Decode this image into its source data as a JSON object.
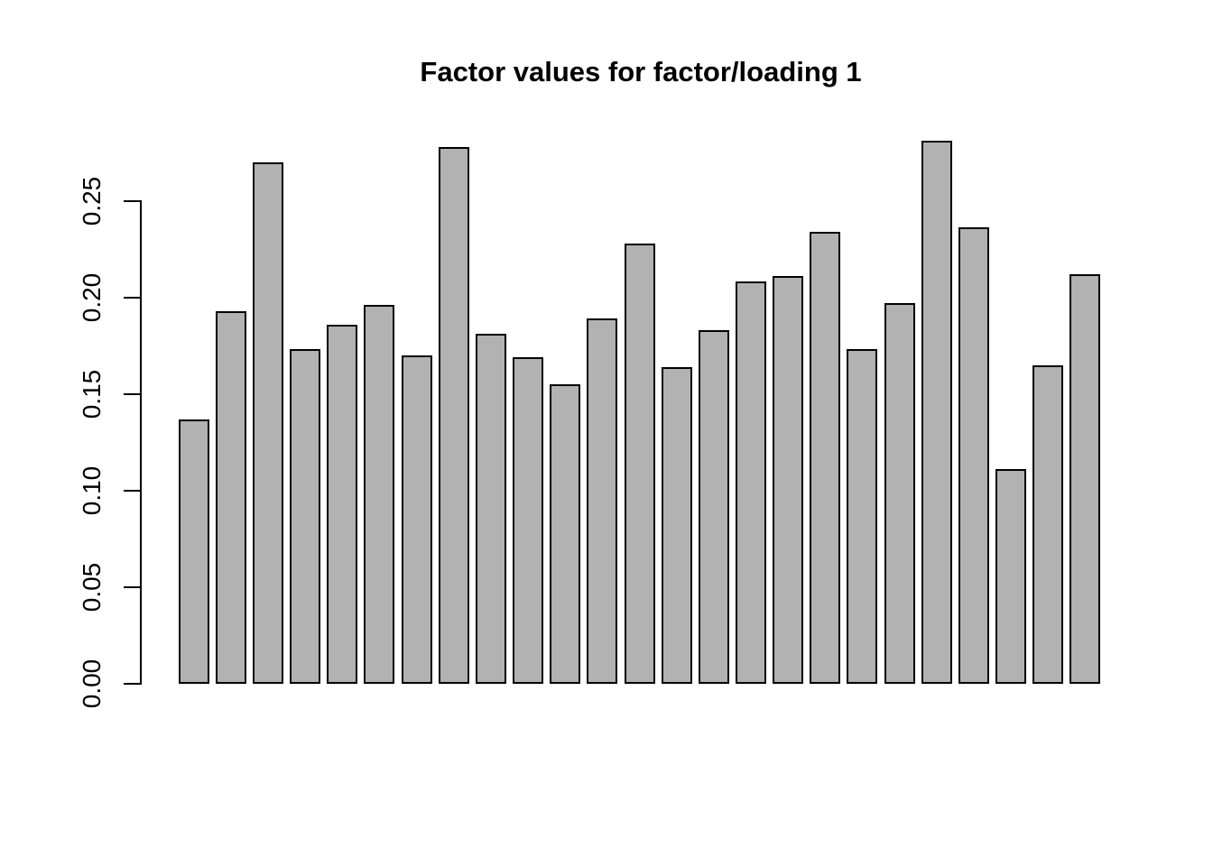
{
  "chart_data": {
    "type": "bar",
    "title": "Factor values for factor/loading 1",
    "xlabel": "",
    "ylabel": "",
    "x_tick_labels": "none",
    "ytick_labels": [
      "0.00",
      "0.05",
      "0.10",
      "0.15",
      "0.20",
      "0.25"
    ],
    "yticks": [
      0.0,
      0.05,
      0.1,
      0.15,
      0.2,
      0.25
    ],
    "ylim": [
      0,
      0.281
    ],
    "grid": false,
    "legend": "none",
    "bar_color": "#b2b2b2",
    "bar_border_color": "#000000",
    "background_color": "#ffffff",
    "values": [
      0.137,
      0.193,
      0.27,
      0.173,
      0.186,
      0.196,
      0.17,
      0.278,
      0.181,
      0.169,
      0.155,
      0.189,
      0.228,
      0.164,
      0.183,
      0.208,
      0.211,
      0.234,
      0.173,
      0.197,
      0.281,
      0.236,
      0.111,
      0.165,
      0.212
    ]
  }
}
